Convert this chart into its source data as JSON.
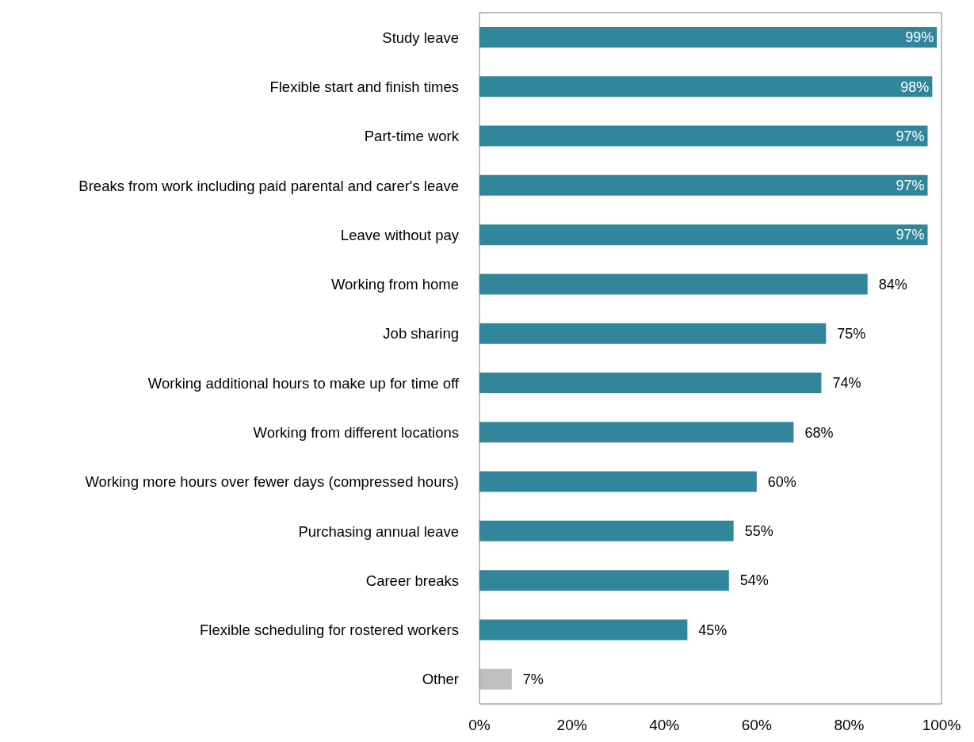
{
  "chart_data": {
    "type": "bar",
    "orientation": "horizontal",
    "categories": [
      "Study leave",
      "Flexible start and finish times",
      "Part-time work",
      "Breaks from work including paid parental and carer's leave",
      "Leave without pay",
      "Working from home",
      "Job sharing",
      "Working additional hours to make up for time off",
      "Working from different locations",
      "Working more hours over fewer days (compressed hours)",
      "Purchasing annual leave",
      "Career breaks",
      "Flexible scheduling for rostered workers",
      "Other"
    ],
    "values": [
      99,
      98,
      97,
      97,
      97,
      84,
      75,
      74,
      68,
      60,
      55,
      54,
      45,
      7
    ],
    "colors": [
      "#31869b",
      "#31869b",
      "#31869b",
      "#31869b",
      "#31869b",
      "#31869b",
      "#31869b",
      "#31869b",
      "#31869b",
      "#31869b",
      "#31869b",
      "#31869b",
      "#31869b",
      "#bfbfbf"
    ],
    "xlim": [
      0,
      100
    ],
    "xticks": [
      {
        "value": 0,
        "label": "0%"
      },
      {
        "value": 20,
        "label": "20%"
      },
      {
        "value": 40,
        "label": "40%"
      },
      {
        "value": 60,
        "label": "60%"
      },
      {
        "value": 80,
        "label": "80%"
      },
      {
        "value": 100,
        "label": "100%"
      }
    ],
    "value_labels": [
      "99%",
      "98%",
      "97%",
      "97%",
      "97%",
      "84%",
      "75%",
      "74%",
      "68%",
      "60%",
      "55%",
      "54%",
      "45%",
      "7%"
    ]
  }
}
